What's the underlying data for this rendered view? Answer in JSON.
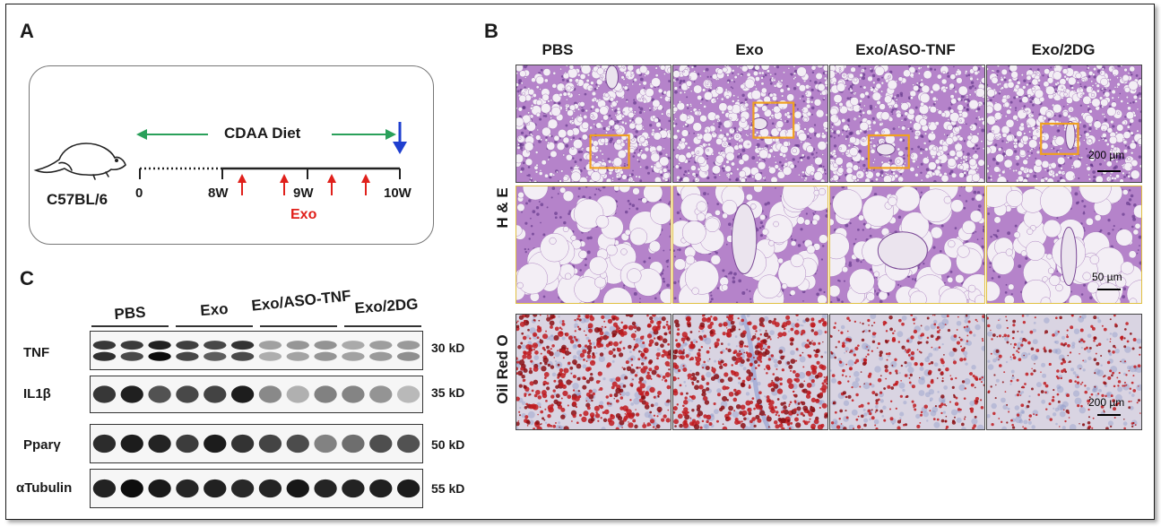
{
  "panel_letters": {
    "a": "A",
    "b": "B",
    "c": "C"
  },
  "panel_a": {
    "strain": "C57BL/6",
    "diet": "CDAA Diet",
    "timepoints": [
      "0",
      "8W",
      "9W",
      "10W"
    ],
    "treatment": "Exo"
  },
  "panel_b": {
    "columns": [
      "PBS",
      "Exo",
      "Exo/ASO-TNF",
      "Exo/2DG"
    ],
    "row_labels": {
      "he": "H & E",
      "oil": "Oil Red O"
    },
    "scale_labels": {
      "he_low": "200 µm",
      "he_high": "50 µm",
      "oil": "200 µm"
    }
  },
  "panel_c": {
    "groups": [
      "PBS",
      "Exo",
      "Exo/ASO-TNF",
      "Exo/2DG"
    ],
    "blots": [
      {
        "protein": "TNF",
        "size": "30 kD"
      },
      {
        "protein": "IL1β",
        "size": "35 kD"
      },
      {
        "protein": "Pparγ",
        "size": "50 kD"
      },
      {
        "protein": "αTubulin",
        "size": "55 kD"
      }
    ]
  },
  "colors": {
    "arrow_green": "#2aa05a",
    "arrow_red": "#e0201b",
    "arrow_blue": "#1f3fcf",
    "highlight_box": "#f0a020",
    "he_purple": "#b07ac8",
    "oil_red": "#b8141b"
  }
}
